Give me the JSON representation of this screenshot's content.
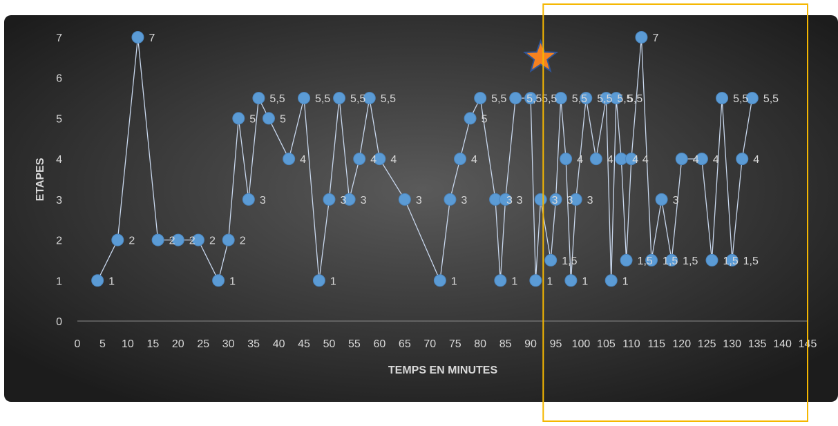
{
  "colors": {
    "background_center": "#5a5a5a",
    "background_edge": "#1c1c1c",
    "line": "#c9d8ee",
    "marker": "#5b9bd5",
    "marker_stroke": "#4a86c0",
    "label": "#d9d9d9",
    "axis_text": "#d9d9d9",
    "highlight_box": "#f5b700",
    "star_fill": "#f58220",
    "star_stroke": "#2f5597"
  },
  "chart_data": {
    "type": "scatter",
    "title": "",
    "xlabel": "TEMPS EN MINUTES",
    "ylabel": "ETAPES",
    "xlim": [
      0,
      145
    ],
    "ylim": [
      0,
      7
    ],
    "x_ticks": [
      0,
      5,
      10,
      15,
      20,
      25,
      30,
      35,
      40,
      45,
      50,
      55,
      60,
      65,
      70,
      75,
      80,
      85,
      90,
      95,
      100,
      105,
      110,
      115,
      120,
      125,
      130,
      135,
      140,
      145
    ],
    "x_tick_labels": [
      "0",
      "5",
      "10",
      "15",
      "20",
      "25",
      "30",
      "35",
      "40",
      "45",
      "50",
      "55",
      "60",
      "65",
      "70",
      "75",
      "80",
      "85",
      "90",
      "95",
      "100",
      "105",
      "110",
      "115",
      "120",
      "125",
      "130",
      "135",
      "140",
      "145"
    ],
    "y_ticks": [
      0,
      1,
      2,
      3,
      4,
      5,
      6,
      7
    ],
    "y_tick_labels": [
      "0",
      "1",
      "2",
      "3",
      "4",
      "5",
      "6",
      "7"
    ],
    "grid": false,
    "legend": "none",
    "series": [
      {
        "x": [
          4,
          8,
          12,
          16,
          20,
          24,
          28,
          30,
          32,
          34,
          36,
          38,
          42,
          45,
          48,
          50,
          52,
          54,
          56,
          58,
          60,
          65,
          72,
          74,
          76,
          78,
          80,
          83,
          84,
          85,
          87,
          90,
          91,
          92,
          94,
          95,
          96,
          97,
          98,
          99,
          101,
          103,
          105,
          106,
          107,
          108,
          109,
          110,
          112,
          114,
          116,
          118,
          120,
          124,
          126,
          128,
          130,
          132,
          134
        ],
        "y": [
          1,
          2,
          7,
          2,
          2,
          2,
          1,
          2,
          5,
          3,
          5.5,
          5,
          4,
          5.5,
          1,
          3,
          5.5,
          3,
          4,
          5.5,
          4,
          3,
          1,
          3,
          4,
          5,
          5.5,
          3,
          1,
          3,
          5.5,
          5.5,
          1,
          3,
          1.5,
          3,
          5.5,
          4,
          1,
          3,
          5.5,
          4,
          5.5,
          1,
          5.5,
          4,
          1.5,
          4,
          7,
          1.5,
          3,
          1.5,
          4,
          4,
          1.5,
          5.5,
          1.5,
          4,
          5.5
        ],
        "data_labels": [
          "1",
          "2",
          "7",
          "2",
          "2",
          "2",
          "1",
          "2",
          "5",
          "3",
          "5,5",
          "5",
          "4",
          "5,5",
          "1",
          "3",
          "5,5",
          "3",
          "4",
          "5,5",
          "4",
          "3",
          "1",
          "3",
          "4",
          "5",
          "5,5",
          "3",
          "1",
          "3",
          "5,5",
          "5,5",
          "1",
          "3",
          "1,5",
          "3",
          "5,5",
          "4",
          "1",
          "3",
          "5,5",
          "4",
          "5,5",
          "1",
          "5,5",
          "4",
          "1,5",
          "4",
          "7",
          "1,5",
          "3",
          "1,5",
          "4",
          "4",
          "1,5",
          "5,5",
          "1,5",
          "4",
          "5,5"
        ]
      }
    ],
    "annotations": [
      {
        "type": "star",
        "x": 92,
        "y": 6.5
      },
      {
        "type": "highlight_box",
        "x_from": 92.5,
        "x_to": 145
      }
    ]
  }
}
